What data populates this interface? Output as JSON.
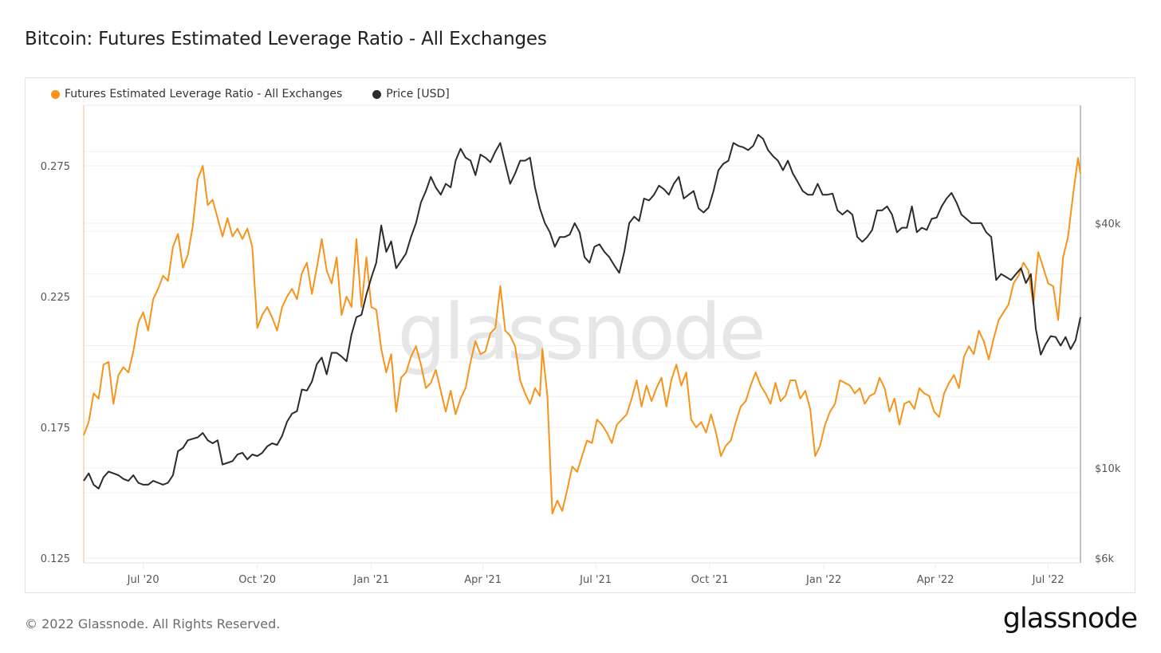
{
  "title": "Bitcoin: Futures Estimated Leverage Ratio - All Exchanges",
  "footer": {
    "copyright": "© 2022 Glassnode. All Rights Reserved.",
    "logo": "glassnode"
  },
  "watermark": "glassnode",
  "chart_data": {
    "type": "line",
    "title": "Bitcoin: Futures Estimated Leverage Ratio - All Exchanges",
    "xlabel": "",
    "grid": true,
    "legend_position": "top-left",
    "x_range": [
      "2020-05-14",
      "2022-07-27"
    ],
    "x_ticks": [
      {
        "label": "Jul '20",
        "date": "2020-07-01"
      },
      {
        "label": "Oct '20",
        "date": "2020-10-01"
      },
      {
        "label": "Jan '21",
        "date": "2021-01-01"
      },
      {
        "label": "Apr '21",
        "date": "2021-04-01"
      },
      {
        "label": "Jul '21",
        "date": "2021-07-01"
      },
      {
        "label": "Oct '21",
        "date": "2021-10-01"
      },
      {
        "label": "Jan '22",
        "date": "2022-01-01"
      },
      {
        "label": "Apr '22",
        "date": "2022-04-01"
      },
      {
        "label": "Jul '22",
        "date": "2022-07-01"
      }
    ],
    "y_left": {
      "label": "Futures Estimated Leverage Ratio",
      "scale": "linear",
      "range": [
        0.125,
        0.2905
      ],
      "ticks": [
        {
          "label": "0.125",
          "value": 0.125
        },
        {
          "label": "0.175",
          "value": 0.175
        },
        {
          "label": "0.225",
          "value": 0.225
        },
        {
          "label": "0.275",
          "value": 0.275
        }
      ]
    },
    "y_right": {
      "label": "Price [USD]",
      "scale": "log",
      "range": [
        6000,
        85000
      ],
      "ticks": [
        {
          "label": "$6k",
          "value": 6000
        },
        {
          "label": "$10k",
          "value": 10000
        },
        {
          "label": "$40k",
          "value": 40000
        }
      ]
    },
    "series": [
      {
        "name": "Futures Estimated Leverage Ratio - All Exchanges",
        "color": "#f7931a",
        "axis": "left",
        "dates": [
          "2020-05-14",
          "2020-05-18",
          "2020-05-22",
          "2020-05-26",
          "2020-05-30",
          "2020-06-03",
          "2020-06-07",
          "2020-06-11",
          "2020-06-15",
          "2020-06-19",
          "2020-06-23",
          "2020-06-27",
          "2020-07-01",
          "2020-07-05",
          "2020-07-09",
          "2020-07-13",
          "2020-07-17",
          "2020-07-21",
          "2020-07-25",
          "2020-07-29",
          "2020-08-02",
          "2020-08-06",
          "2020-08-10",
          "2020-08-14",
          "2020-08-18",
          "2020-08-22",
          "2020-08-26",
          "2020-08-30",
          "2020-09-03",
          "2020-09-07",
          "2020-09-11",
          "2020-09-15",
          "2020-09-19",
          "2020-09-23",
          "2020-09-27",
          "2020-10-01",
          "2020-10-05",
          "2020-10-09",
          "2020-10-13",
          "2020-10-17",
          "2020-10-21",
          "2020-10-25",
          "2020-10-29",
          "2020-11-02",
          "2020-11-06",
          "2020-11-10",
          "2020-11-14",
          "2020-11-18",
          "2020-11-22",
          "2020-11-26",
          "2020-11-30",
          "2020-12-04",
          "2020-12-08",
          "2020-12-12",
          "2020-12-16",
          "2020-12-20",
          "2020-12-24",
          "2020-12-28",
          "2021-01-01",
          "2021-01-05",
          "2021-01-09",
          "2021-01-13",
          "2021-01-17",
          "2021-01-21",
          "2021-01-25",
          "2021-01-29",
          "2021-02-02",
          "2021-02-06",
          "2021-02-10",
          "2021-02-14",
          "2021-02-18",
          "2021-02-22",
          "2021-02-26",
          "2021-03-02",
          "2021-03-06",
          "2021-03-10",
          "2021-03-14",
          "2021-03-18",
          "2021-03-22",
          "2021-03-26",
          "2021-03-30",
          "2021-04-03",
          "2021-04-07",
          "2021-04-11",
          "2021-04-15",
          "2021-04-19",
          "2021-04-23",
          "2021-04-27",
          "2021-05-01",
          "2021-05-05",
          "2021-05-09",
          "2021-05-13",
          "2021-05-17",
          "2021-05-19",
          "2021-05-23",
          "2021-05-27",
          "2021-05-31",
          "2021-06-04",
          "2021-06-08",
          "2021-06-12",
          "2021-06-16",
          "2021-06-20",
          "2021-06-24",
          "2021-06-28",
          "2021-07-02",
          "2021-07-06",
          "2021-07-10",
          "2021-07-14",
          "2021-07-18",
          "2021-07-22",
          "2021-07-26",
          "2021-07-30",
          "2021-08-03",
          "2021-08-07",
          "2021-08-11",
          "2021-08-15",
          "2021-08-19",
          "2021-08-23",
          "2021-08-27",
          "2021-08-31",
          "2021-09-04",
          "2021-09-08",
          "2021-09-12",
          "2021-09-16",
          "2021-09-20",
          "2021-09-24",
          "2021-09-28",
          "2021-10-02",
          "2021-10-06",
          "2021-10-10",
          "2021-10-14",
          "2021-10-18",
          "2021-10-22",
          "2021-10-26",
          "2021-10-30",
          "2021-11-03",
          "2021-11-07",
          "2021-11-11",
          "2021-11-15",
          "2021-11-19",
          "2021-11-23",
          "2021-11-27",
          "2021-12-01",
          "2021-12-05",
          "2021-12-09",
          "2021-12-13",
          "2021-12-17",
          "2021-12-21",
          "2021-12-25",
          "2021-12-29",
          "2022-01-02",
          "2022-01-06",
          "2022-01-10",
          "2022-01-14",
          "2022-01-18",
          "2022-01-22",
          "2022-01-26",
          "2022-01-30",
          "2022-02-03",
          "2022-02-07",
          "2022-02-11",
          "2022-02-15",
          "2022-02-19",
          "2022-02-23",
          "2022-02-27",
          "2022-03-03",
          "2022-03-07",
          "2022-03-11",
          "2022-03-15",
          "2022-03-19",
          "2022-03-23",
          "2022-03-27",
          "2022-03-31",
          "2022-04-04",
          "2022-04-08",
          "2022-04-12",
          "2022-04-16",
          "2022-04-20",
          "2022-04-24",
          "2022-04-28",
          "2022-05-02",
          "2022-05-06",
          "2022-05-10",
          "2022-05-14",
          "2022-05-18",
          "2022-05-22",
          "2022-05-26",
          "2022-05-30",
          "2022-06-03",
          "2022-06-07",
          "2022-06-11",
          "2022-06-15",
          "2022-06-19",
          "2022-06-23",
          "2022-06-27",
          "2022-07-01",
          "2022-07-05",
          "2022-07-09",
          "2022-07-13",
          "2022-07-17",
          "2022-07-21",
          "2022-07-25",
          "2022-07-27"
        ],
        "values": [
          0.172,
          0.177,
          0.188,
          0.186,
          0.199,
          0.2,
          0.184,
          0.195,
          0.198,
          0.196,
          0.204,
          0.215,
          0.219,
          0.212,
          0.224,
          0.228,
          0.233,
          0.231,
          0.244,
          0.249,
          0.236,
          0.241,
          0.252,
          0.27,
          0.275,
          0.26,
          0.262,
          0.255,
          0.248,
          0.255,
          0.248,
          0.251,
          0.247,
          0.251,
          0.244,
          0.213,
          0.218,
          0.221,
          0.217,
          0.212,
          0.221,
          0.225,
          0.228,
          0.224,
          0.234,
          0.238,
          0.226,
          0.236,
          0.247,
          0.235,
          0.23,
          0.24,
          0.218,
          0.225,
          0.221,
          0.247,
          0.221,
          0.24,
          0.221,
          0.22,
          0.205,
          0.196,
          0.203,
          0.181,
          0.194,
          0.196,
          0.202,
          0.206,
          0.199,
          0.19,
          0.192,
          0.197,
          0.189,
          0.181,
          0.189,
          0.18,
          0.186,
          0.19,
          0.2,
          0.208,
          0.203,
          0.204,
          0.211,
          0.213,
          0.229,
          0.212,
          0.21,
          0.206,
          0.193,
          0.188,
          0.184,
          0.19,
          0.187,
          0.205,
          0.187,
          0.142,
          0.147,
          0.143,
          0.151,
          0.16,
          0.158,
          0.164,
          0.17,
          0.169,
          0.178,
          0.176,
          0.173,
          0.169,
          0.176,
          0.178,
          0.18,
          0.186,
          0.193,
          0.183,
          0.191,
          0.185,
          0.19,
          0.194,
          0.183,
          0.193,
          0.199,
          0.191,
          0.196,
          0.178,
          0.175,
          0.177,
          0.173,
          0.18,
          0.173,
          0.164,
          0.168,
          0.17,
          0.177,
          0.183,
          0.185,
          0.191,
          0.196,
          0.191,
          0.188,
          0.184,
          0.192,
          0.185,
          0.187,
          0.193,
          0.193,
          0.186,
          0.189,
          0.182,
          0.164,
          0.168,
          0.176,
          0.181,
          0.184,
          0.193,
          0.192,
          0.191,
          0.188,
          0.19,
          0.184,
          0.187,
          0.188,
          0.194,
          0.19,
          0.181,
          0.186,
          0.176,
          0.184,
          0.185,
          0.182,
          0.19,
          0.188,
          0.187,
          0.181,
          0.179,
          0.188,
          0.192,
          0.195,
          0.19,
          0.202,
          0.206,
          0.203,
          0.212,
          0.208,
          0.201,
          0.209,
          0.216,
          0.219,
          0.222,
          0.23,
          0.233,
          0.238,
          0.235,
          0.222,
          0.242,
          0.236,
          0.23,
          0.229,
          0.216,
          0.24,
          0.248,
          0.264,
          0.278,
          0.272,
          0.28,
          0.272,
          0.271,
          0.285
        ],
        "y_range": [
          0.125,
          0.2905
        ]
      },
      {
        "name": "Price [USD]",
        "color": "#2b2b2b",
        "axis": "right",
        "dates": [
          "2020-05-14",
          "2020-05-18",
          "2020-05-22",
          "2020-05-26",
          "2020-05-30",
          "2020-06-03",
          "2020-06-07",
          "2020-06-11",
          "2020-06-15",
          "2020-06-19",
          "2020-06-23",
          "2020-06-27",
          "2020-07-01",
          "2020-07-05",
          "2020-07-09",
          "2020-07-13",
          "2020-07-17",
          "2020-07-21",
          "2020-07-25",
          "2020-07-29",
          "2020-08-02",
          "2020-08-06",
          "2020-08-10",
          "2020-08-14",
          "2020-08-18",
          "2020-08-22",
          "2020-08-26",
          "2020-08-30",
          "2020-09-03",
          "2020-09-07",
          "2020-09-11",
          "2020-09-15",
          "2020-09-19",
          "2020-09-23",
          "2020-09-27",
          "2020-10-01",
          "2020-10-05",
          "2020-10-09",
          "2020-10-13",
          "2020-10-17",
          "2020-10-21",
          "2020-10-25",
          "2020-10-29",
          "2020-11-02",
          "2020-11-06",
          "2020-11-10",
          "2020-11-14",
          "2020-11-18",
          "2020-11-22",
          "2020-11-26",
          "2020-11-30",
          "2020-12-04",
          "2020-12-08",
          "2020-12-12",
          "2020-12-16",
          "2020-12-20",
          "2020-12-24",
          "2020-12-28",
          "2021-01-01",
          "2021-01-05",
          "2021-01-09",
          "2021-01-13",
          "2021-01-17",
          "2021-01-21",
          "2021-01-25",
          "2021-01-29",
          "2021-02-02",
          "2021-02-06",
          "2021-02-10",
          "2021-02-14",
          "2021-02-18",
          "2021-02-22",
          "2021-02-26",
          "2021-03-02",
          "2021-03-06",
          "2021-03-10",
          "2021-03-14",
          "2021-03-18",
          "2021-03-22",
          "2021-03-26",
          "2021-03-30",
          "2021-04-03",
          "2021-04-07",
          "2021-04-11",
          "2021-04-15",
          "2021-04-19",
          "2021-04-23",
          "2021-04-27",
          "2021-05-01",
          "2021-05-05",
          "2021-05-09",
          "2021-05-13",
          "2021-05-17",
          "2021-05-21",
          "2021-05-25",
          "2021-05-29",
          "2021-06-02",
          "2021-06-06",
          "2021-06-10",
          "2021-06-14",
          "2021-06-18",
          "2021-06-22",
          "2021-06-26",
          "2021-06-30",
          "2021-07-04",
          "2021-07-08",
          "2021-07-12",
          "2021-07-16",
          "2021-07-20",
          "2021-07-24",
          "2021-07-28",
          "2021-08-01",
          "2021-08-05",
          "2021-08-09",
          "2021-08-13",
          "2021-08-17",
          "2021-08-21",
          "2021-08-25",
          "2021-08-29",
          "2021-09-02",
          "2021-09-06",
          "2021-09-10",
          "2021-09-14",
          "2021-09-18",
          "2021-09-22",
          "2021-09-26",
          "2021-09-30",
          "2021-10-04",
          "2021-10-08",
          "2021-10-12",
          "2021-10-16",
          "2021-10-20",
          "2021-10-24",
          "2021-10-28",
          "2021-11-01",
          "2021-11-05",
          "2021-11-09",
          "2021-11-13",
          "2021-11-17",
          "2021-11-21",
          "2021-11-25",
          "2021-11-29",
          "2021-12-03",
          "2021-12-07",
          "2021-12-11",
          "2021-12-15",
          "2021-12-19",
          "2021-12-23",
          "2021-12-27",
          "2021-12-31",
          "2022-01-04",
          "2022-01-08",
          "2022-01-12",
          "2022-01-16",
          "2022-01-20",
          "2022-01-24",
          "2022-01-28",
          "2022-02-01",
          "2022-02-05",
          "2022-02-09",
          "2022-02-13",
          "2022-02-17",
          "2022-02-21",
          "2022-02-25",
          "2022-03-01",
          "2022-03-05",
          "2022-03-09",
          "2022-03-13",
          "2022-03-17",
          "2022-03-21",
          "2022-03-25",
          "2022-03-29",
          "2022-04-02",
          "2022-04-06",
          "2022-04-10",
          "2022-04-14",
          "2022-04-18",
          "2022-04-22",
          "2022-04-26",
          "2022-04-30",
          "2022-05-04",
          "2022-05-08",
          "2022-05-12",
          "2022-05-16",
          "2022-05-20",
          "2022-05-24",
          "2022-05-28",
          "2022-06-01",
          "2022-06-05",
          "2022-06-09",
          "2022-06-13",
          "2022-06-17",
          "2022-06-21",
          "2022-06-25",
          "2022-06-29",
          "2022-07-03",
          "2022-07-07",
          "2022-07-11",
          "2022-07-15",
          "2022-07-19",
          "2022-07-23",
          "2022-07-27"
        ],
        "values": [
          9300,
          9700,
          9100,
          8900,
          9500,
          9800,
          9700,
          9600,
          9400,
          9300,
          9600,
          9200,
          9100,
          9100,
          9300,
          9200,
          9100,
          9200,
          9600,
          11000,
          11200,
          11700,
          11800,
          11900,
          12200,
          11700,
          11500,
          11700,
          10200,
          10300,
          10400,
          10800,
          10900,
          10500,
          10800,
          10700,
          10900,
          11300,
          11500,
          11400,
          12000,
          13000,
          13600,
          13800,
          15600,
          15500,
          16300,
          18000,
          18700,
          17000,
          19200,
          19200,
          18800,
          18300,
          21300,
          23500,
          23800,
          26700,
          29400,
          32000,
          39500,
          34000,
          36100,
          31000,
          32300,
          33700,
          37000,
          40000,
          45000,
          48000,
          52000,
          49000,
          47000,
          50000,
          49000,
          57000,
          61000,
          58000,
          57000,
          52500,
          59000,
          58000,
          56500,
          60000,
          63000,
          56000,
          50000,
          53000,
          57000,
          57000,
          58000,
          49000,
          43500,
          40000,
          38000,
          35000,
          37000,
          37000,
          37500,
          40000,
          38000,
          33000,
          32000,
          35000,
          35500,
          34000,
          33000,
          31500,
          30200,
          34000,
          40000,
          41500,
          40500,
          46000,
          45500,
          47000,
          49500,
          48500,
          47000,
          50000,
          52000,
          46000,
          47000,
          48000,
          43500,
          42500,
          43700,
          48000,
          54000,
          56000,
          57000,
          63000,
          62000,
          61500,
          60500,
          62000,
          66000,
          64500,
          60500,
          58500,
          57000,
          54000,
          57000,
          53000,
          50500,
          48000,
          47000,
          47000,
          50000,
          47000,
          47000,
          47300,
          43000,
          42000,
          43000,
          42000,
          37000,
          36000,
          37000,
          38500,
          43000,
          43000,
          44000,
          42000,
          38000,
          39000,
          39000,
          44000,
          38000,
          39000,
          38500,
          41000,
          41300,
          44000,
          46000,
          47500,
          45000,
          42000,
          41000,
          40000,
          40000,
          40000,
          38000,
          37000,
          29000,
          30000,
          29500,
          29000,
          30000,
          31000,
          28500,
          30000,
          22000,
          19000,
          20200,
          21100,
          21000,
          20000,
          21000,
          19600,
          20600,
          23500,
          22500,
          21500,
          23500,
          24000
        ]
      }
    ]
  }
}
